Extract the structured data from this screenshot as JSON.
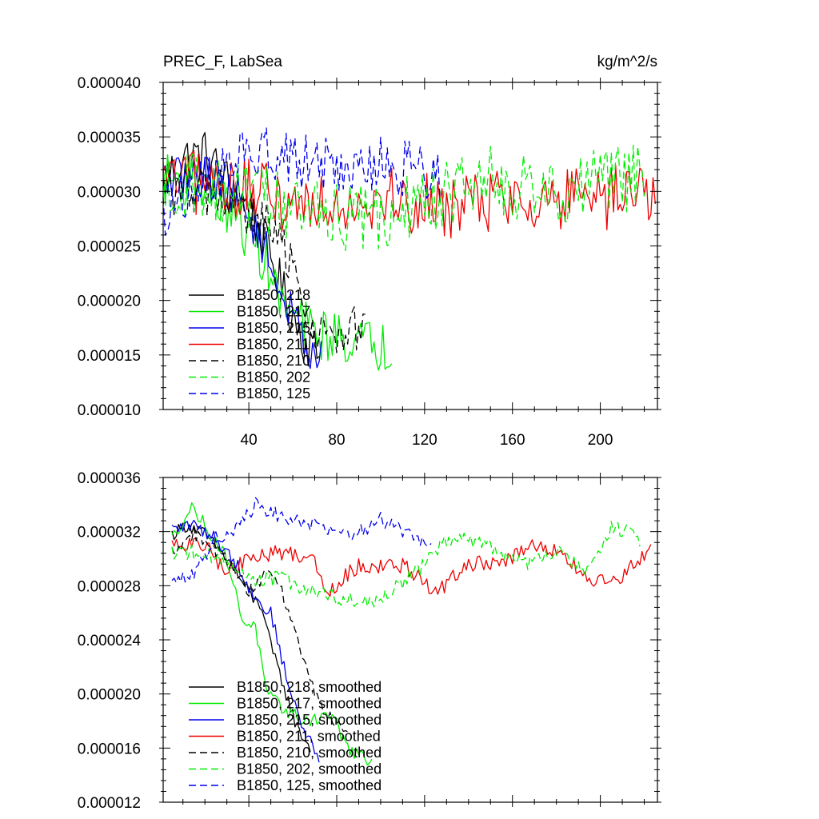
{
  "chart_data": [
    {
      "type": "line",
      "title": "PREC_F, LabSea",
      "units": "kg/m^2/s",
      "xlim": [
        1,
        226
      ],
      "ylim": [
        1e-05,
        4e-05
      ],
      "yticks": [
        "0.000010",
        "0.000015",
        "0.000020",
        "0.000025",
        "0.000030",
        "0.000035",
        "0.000040"
      ],
      "xticks": [
        40,
        80,
        120,
        160,
        200
      ],
      "legend_position": "lower-left",
      "series": [
        {
          "name": "B1850, 218",
          "color": "#000000",
          "dash": "solid",
          "length": 72,
          "profile": [
            [
              1,
              3.1e-05
            ],
            [
              10,
              3.3e-05
            ],
            [
              20,
              3.35e-05
            ],
            [
              30,
              3.1e-05
            ],
            [
              40,
              2.85e-05
            ],
            [
              50,
              2.4e-05
            ],
            [
              57,
              2e-05
            ],
            [
              65,
              1.65e-05
            ],
            [
              72,
              1.5e-05
            ]
          ],
          "noise": 2.2e-06
        },
        {
          "name": "B1850, 217",
          "color": "#00ee00",
          "dash": "solid",
          "length": 105,
          "profile": [
            [
              1,
              3.1e-05
            ],
            [
              15,
              3.15e-05
            ],
            [
              30,
              2.85e-05
            ],
            [
              40,
              2.6e-05
            ],
            [
              48,
              2.35e-05
            ],
            [
              55,
              1.95e-05
            ],
            [
              70,
              1.7e-05
            ],
            [
              85,
              1.65e-05
            ],
            [
              95,
              1.6e-05
            ],
            [
              105,
              1.55e-05
            ]
          ],
          "noise": 2.4e-06
        },
        {
          "name": "B1850, 215",
          "color": "#0000ee",
          "dash": "solid",
          "length": 73,
          "profile": [
            [
              1,
              3.1e-05
            ],
            [
              20,
              3.15e-05
            ],
            [
              35,
              2.95e-05
            ],
            [
              45,
              2.6e-05
            ],
            [
              55,
              2.05e-05
            ],
            [
              65,
              1.65e-05
            ],
            [
              73,
              1.45e-05
            ]
          ],
          "noise": 2e-06
        },
        {
          "name": "B1850, 211",
          "color": "#ee0000",
          "dash": "solid",
          "length": 225,
          "profile": [
            [
              1,
              3.1e-05
            ],
            [
              30,
              3.05e-05
            ],
            [
              60,
              2.9e-05
            ],
            [
              100,
              2.95e-05
            ],
            [
              125,
              2.85e-05
            ],
            [
              160,
              2.95e-05
            ],
            [
              200,
              2.9e-05
            ],
            [
              225,
              3.05e-05
            ]
          ],
          "noise": 3e-06
        },
        {
          "name": "B1850, 210",
          "color": "#000000",
          "dash": "dashed",
          "length": 93,
          "profile": [
            [
              1,
              3e-05
            ],
            [
              20,
              3e-05
            ],
            [
              40,
              2.8e-05
            ],
            [
              52,
              2.6e-05
            ],
            [
              60,
              2.3e-05
            ],
            [
              68,
              1.8e-05
            ],
            [
              80,
              1.6e-05
            ],
            [
              93,
              1.8e-05
            ]
          ],
          "noise": 2.2e-06
        },
        {
          "name": "B1850, 202",
          "color": "#00ee00",
          "dash": "dashed",
          "length": 220,
          "profile": [
            [
              1,
              3.1e-05
            ],
            [
              50,
              2.9e-05
            ],
            [
              80,
              2.75e-05
            ],
            [
              100,
              2.75e-05
            ],
            [
              125,
              2.95e-05
            ],
            [
              150,
              3.1e-05
            ],
            [
              180,
              3e-05
            ],
            [
              205,
              3.1e-05
            ],
            [
              220,
              3.15e-05
            ]
          ],
          "noise": 3.2e-06
        },
        {
          "name": "B1850, 125",
          "color": "#0000ee",
          "dash": "dashed",
          "length": 127,
          "profile": [
            [
              1,
              2.8e-05
            ],
            [
              15,
              3.05e-05
            ],
            [
              40,
              3.35e-05
            ],
            [
              70,
              3.25e-05
            ],
            [
              100,
              3.25e-05
            ],
            [
              127,
              3.15e-05
            ]
          ],
          "noise": 2.6e-06
        }
      ],
      "legend": [
        "B1850, 218",
        "B1850, 217",
        "B1850, 215",
        "B1850, 211",
        "B1850, 210",
        "B1850, 202",
        "B1850, 125"
      ]
    },
    {
      "type": "line",
      "title": "",
      "xlim": [
        1,
        226
      ],
      "ylim": [
        1.2e-05,
        3.6e-05
      ],
      "yticks": [
        "0.000012",
        "0.000016",
        "0.000020",
        "0.000024",
        "0.000028",
        "0.000032",
        "0.000036"
      ],
      "xticks": [],
      "legend_position": "lower-left",
      "series": [
        {
          "name": "B1850, 218, smoothed",
          "color": "#000000",
          "dash": "solid",
          "length": 68,
          "profile": [
            [
              5,
              3.18e-05
            ],
            [
              12,
              3.25e-05
            ],
            [
              20,
              3.18e-05
            ],
            [
              30,
              3e-05
            ],
            [
              36,
              2.85e-05
            ],
            [
              42,
              2.7e-05
            ],
            [
              46,
              2.65e-05
            ],
            [
              50,
              2.35e-05
            ],
            [
              55,
              2.1e-05
            ],
            [
              62,
              1.75e-05
            ],
            [
              68,
              1.6e-05
            ]
          ],
          "noise": 5e-07
        },
        {
          "name": "B1850, 217, smoothed",
          "color": "#00ee00",
          "dash": "solid",
          "length": 96,
          "profile": [
            [
              5,
              3.15e-05
            ],
            [
              14,
              3.38e-05
            ],
            [
              20,
              3.25e-05
            ],
            [
              30,
              3e-05
            ],
            [
              37,
              2.55e-05
            ],
            [
              43,
              2.5e-05
            ],
            [
              48,
              2e-05
            ],
            [
              55,
              1.9e-05
            ],
            [
              65,
              1.8e-05
            ],
            [
              78,
              1.85e-05
            ],
            [
              85,
              1.6e-05
            ],
            [
              96,
              1.48e-05
            ]
          ],
          "noise": 5e-07
        },
        {
          "name": "B1850, 215, smoothed",
          "color": "#0000ee",
          "dash": "solid",
          "length": 72,
          "profile": [
            [
              5,
              3.22e-05
            ],
            [
              15,
              3.25e-05
            ],
            [
              25,
              3.15e-05
            ],
            [
              35,
              2.95e-05
            ],
            [
              43,
              2.7e-05
            ],
            [
              50,
              2.6e-05
            ],
            [
              56,
              2.2e-05
            ],
            [
              62,
              1.85e-05
            ],
            [
              72,
              1.52e-05
            ]
          ],
          "noise": 5e-07
        },
        {
          "name": "B1850, 211, smoothed",
          "color": "#ee0000",
          "dash": "solid",
          "length": 223,
          "profile": [
            [
              5,
              3.1e-05
            ],
            [
              20,
              3.1e-05
            ],
            [
              30,
              2.9e-05
            ],
            [
              40,
              3e-05
            ],
            [
              55,
              3.05e-05
            ],
            [
              70,
              3e-05
            ],
            [
              75,
              2.75e-05
            ],
            [
              90,
              2.95e-05
            ],
            [
              110,
              2.95e-05
            ],
            [
              125,
              2.75e-05
            ],
            [
              140,
              2.95e-05
            ],
            [
              160,
              3e-05
            ],
            [
              170,
              3.1e-05
            ],
            [
              180,
              3.05e-05
            ],
            [
              195,
              2.85e-05
            ],
            [
              205,
              2.8e-05
            ],
            [
              215,
              2.95e-05
            ],
            [
              223,
              3.05e-05
            ]
          ],
          "noise": 6e-07
        },
        {
          "name": "B1850, 210, smoothed",
          "color": "#000000",
          "dash": "dashed",
          "length": 85,
          "profile": [
            [
              5,
              3.05e-05
            ],
            [
              15,
              3.18e-05
            ],
            [
              30,
              3e-05
            ],
            [
              40,
              2.75e-05
            ],
            [
              48,
              2.9e-05
            ],
            [
              55,
              2.75e-05
            ],
            [
              62,
              2.4e-05
            ],
            [
              68,
              2.1e-05
            ],
            [
              75,
              1.85e-05
            ],
            [
              85,
              1.7e-05
            ]
          ],
          "noise": 5e-07
        },
        {
          "name": "B1850, 202, smoothed",
          "color": "#00ee00",
          "dash": "dashed",
          "length": 218,
          "profile": [
            [
              5,
              3.05e-05
            ],
            [
              20,
              3.05e-05
            ],
            [
              40,
              2.85e-05
            ],
            [
              55,
              2.85e-05
            ],
            [
              80,
              2.7e-05
            ],
            [
              100,
              2.7e-05
            ],
            [
              120,
              2.95e-05
            ],
            [
              130,
              3.15e-05
            ],
            [
              150,
              3.1e-05
            ],
            [
              165,
              2.95e-05
            ],
            [
              180,
              3.05e-05
            ],
            [
              195,
              2.9e-05
            ],
            [
              205,
              3.25e-05
            ],
            [
              218,
              3.15e-05
            ]
          ],
          "noise": 6e-07
        },
        {
          "name": "B1850, 125, smoothed",
          "color": "#0000ee",
          "dash": "dashed",
          "length": 123,
          "profile": [
            [
              5,
              2.8e-05
            ],
            [
              15,
              2.9e-05
            ],
            [
              25,
              3.15e-05
            ],
            [
              35,
              3.25e-05
            ],
            [
              43,
              3.4e-05
            ],
            [
              55,
              3.3e-05
            ],
            [
              70,
              3.25e-05
            ],
            [
              85,
              3.15e-05
            ],
            [
              100,
              3.3e-05
            ],
            [
              115,
              3.15e-05
            ],
            [
              123,
              3.1e-05
            ]
          ],
          "noise": 6e-07
        }
      ],
      "legend": [
        "B1850, 218, smoothed",
        "B1850, 217, smoothed",
        "B1850, 215, smoothed",
        "B1850, 211, smoothed",
        "B1850, 210, smoothed",
        "B1850, 202, smoothed",
        "B1850, 125, smoothed"
      ]
    }
  ]
}
